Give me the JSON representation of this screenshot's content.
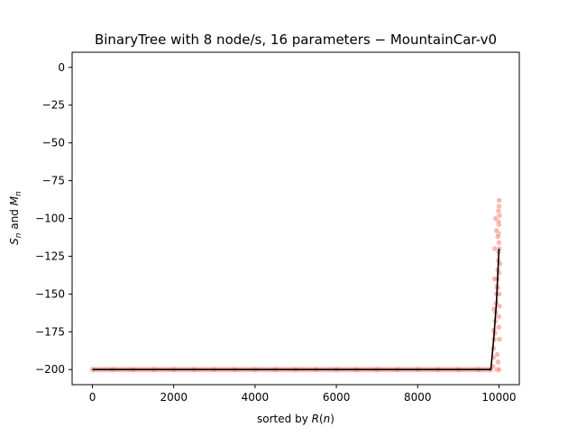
{
  "chart_data": {
    "type": "scatter",
    "title": "BinaryTree with 8 node/s, 16 parameters − MountainCar-v0",
    "xlabel": "sorted by R(n)",
    "ylabel": "S_n and M_n",
    "xlim": [
      -500,
      10500
    ],
    "ylim": [
      -210,
      10
    ],
    "xticks": [
      0,
      2000,
      4000,
      6000,
      8000,
      10000
    ],
    "yticks": [
      0,
      -25,
      -50,
      -75,
      -100,
      -125,
      -150,
      -175,
      -200
    ],
    "xtick_labels": [
      "0",
      "2000",
      "4000",
      "6000",
      "8000",
      "10000"
    ],
    "ytick_labels": [
      "0",
      "−25",
      "−50",
      "−75",
      "−100",
      "−125",
      "−150",
      "−175",
      "−200"
    ],
    "grid": false,
    "legend": "none",
    "series": [
      {
        "kind": "scatter",
        "color": "#fa8072",
        "points": [
          [
            0,
            -200
          ],
          [
            500,
            -200
          ],
          [
            1000,
            -200
          ],
          [
            1500,
            -200
          ],
          [
            2000,
            -200
          ],
          [
            2500,
            -200
          ],
          [
            3000,
            -200
          ],
          [
            3500,
            -200
          ],
          [
            4000,
            -200
          ],
          [
            4500,
            -200
          ],
          [
            5000,
            -200
          ],
          [
            5500,
            -200
          ],
          [
            6000,
            -200
          ],
          [
            6500,
            -200
          ],
          [
            7000,
            -200
          ],
          [
            7500,
            -200
          ],
          [
            8000,
            -200
          ],
          [
            8500,
            -200
          ],
          [
            9000,
            -200
          ],
          [
            9500,
            -200
          ],
          [
            9800,
            -200
          ],
          [
            9950,
            -200
          ],
          [
            10000,
            -200
          ],
          [
            9850,
            -198
          ],
          [
            9870,
            -192
          ],
          [
            9860,
            -186
          ],
          [
            9880,
            -180
          ],
          [
            9870,
            -174
          ],
          [
            9900,
            -176
          ],
          [
            9910,
            -168
          ],
          [
            9920,
            -162
          ],
          [
            9930,
            -156
          ],
          [
            9940,
            -150
          ],
          [
            9950,
            -145
          ],
          [
            9960,
            -140
          ],
          [
            9970,
            -134
          ],
          [
            9980,
            -128
          ],
          [
            9990,
            -122
          ],
          [
            10000,
            -116
          ],
          [
            9990,
            -110
          ],
          [
            10000,
            -104
          ],
          [
            10010,
            -98
          ],
          [
            10000,
            -92
          ],
          [
            10005,
            -88
          ],
          [
            9990,
            -95
          ],
          [
            9985,
            -102
          ],
          [
            9975,
            -112
          ],
          [
            10010,
            -120
          ],
          [
            10020,
            -130
          ],
          [
            10000,
            -136
          ],
          [
            9965,
            -146
          ],
          [
            10005,
            -150
          ],
          [
            10010,
            -158
          ],
          [
            10000,
            -165
          ],
          [
            9995,
            -172
          ],
          [
            10010,
            -180
          ],
          [
            9960,
            -190
          ],
          [
            9980,
            -195
          ],
          [
            9900,
            -120
          ],
          [
            9920,
            -100
          ],
          [
            9940,
            -108
          ],
          [
            9895,
            -140
          ],
          [
            9880,
            -160
          ]
        ]
      },
      {
        "kind": "line",
        "color": "#000000",
        "points": [
          [
            0,
            -200
          ],
          [
            9800,
            -200
          ],
          [
            9870,
            -180
          ],
          [
            9940,
            -155
          ],
          [
            10000,
            -120
          ]
        ]
      }
    ]
  }
}
